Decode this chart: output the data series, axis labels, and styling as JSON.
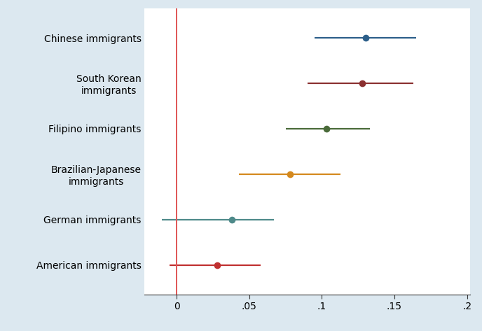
{
  "categories": [
    "Chinese immigrants",
    "South Korean\nimmigrants",
    "Filipino immigrants",
    "Brazilian-Japanese\nimmigrants",
    "German immigrants",
    "American immigrants"
  ],
  "estimates": [
    0.13,
    0.128,
    0.103,
    0.078,
    0.038,
    0.028
  ],
  "ci_low": [
    0.095,
    0.09,
    0.075,
    0.043,
    -0.01,
    -0.005
  ],
  "ci_high": [
    0.165,
    0.163,
    0.133,
    0.113,
    0.067,
    0.058
  ],
  "colors": [
    "#2c5f8a",
    "#8b3030",
    "#4a6b3a",
    "#d4891e",
    "#4e8a8a",
    "#c03030"
  ],
  "background_color": "#dce8f0",
  "plot_background": "#ffffff",
  "vline_color": "#e05555",
  "xlim_min": -0.022,
  "xlim_max": 0.202,
  "xticks": [
    0,
    0.05,
    0.1,
    0.15,
    0.2
  ],
  "xticklabels": [
    "0",
    ".05",
    ".1",
    ".15",
    ".2"
  ],
  "marker_size": 7,
  "line_width": 1.6,
  "fontsize_labels": 10,
  "fontsize_ticks": 10
}
